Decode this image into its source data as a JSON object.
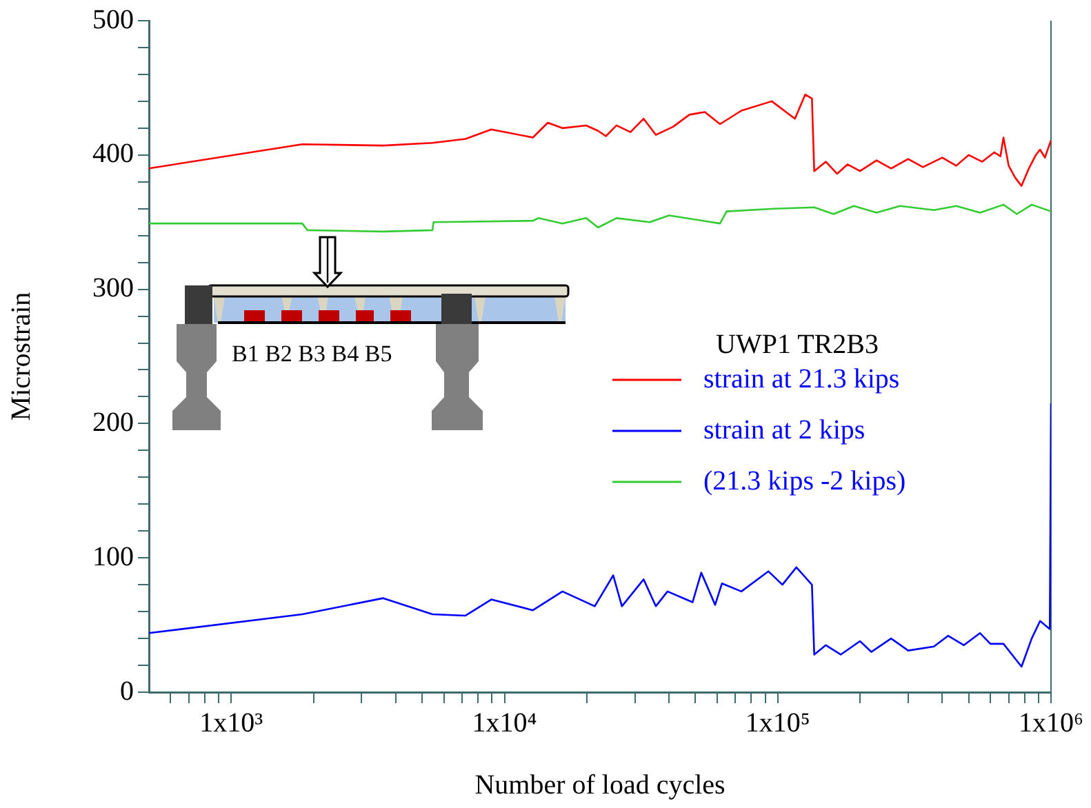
{
  "chart_data": {
    "type": "line",
    "xlabel": "Number of load cycles",
    "ylabel": "Microstrain",
    "annotations": [
      "UWP1 TR2B3",
      "B1 B2 B3 B4 B5"
    ],
    "log": "x",
    "grid": false,
    "legend": "right",
    "marker": "none",
    "line_style": "solid",
    "xlim": [
      500,
      1000000
    ],
    "xticks": [
      {
        "value": 600,
        "label": null
      },
      {
        "value": 700,
        "label": null
      },
      {
        "value": 800,
        "label": null
      },
      {
        "value": 900,
        "label": null
      },
      {
        "value": 1000,
        "label": "1x10³"
      },
      {
        "value": 2000,
        "label": null
      },
      {
        "value": 3000,
        "label": null
      },
      {
        "value": 4000,
        "label": null
      },
      {
        "value": 5000,
        "label": null
      },
      {
        "value": 6000,
        "label": null
      },
      {
        "value": 7000,
        "label": null
      },
      {
        "value": 8000,
        "label": null
      },
      {
        "value": 9000,
        "label": null
      },
      {
        "value": 10000,
        "label": "1x10⁴"
      },
      {
        "value": 20000,
        "label": null
      },
      {
        "value": 30000,
        "label": null
      },
      {
        "value": 40000,
        "label": null
      },
      {
        "value": 50000,
        "label": null
      },
      {
        "value": 60000,
        "label": null
      },
      {
        "value": 70000,
        "label": null
      },
      {
        "value": 80000,
        "label": null
      },
      {
        "value": 90000,
        "label": null
      },
      {
        "value": 100000,
        "label": "1x10⁵"
      },
      {
        "value": 200000,
        "label": null
      },
      {
        "value": 300000,
        "label": null
      },
      {
        "value": 400000,
        "label": null
      },
      {
        "value": 500000,
        "label": null
      },
      {
        "value": 600000,
        "label": null
      },
      {
        "value": 700000,
        "label": null
      },
      {
        "value": 800000,
        "label": null
      },
      {
        "value": 900000,
        "label": null
      },
      {
        "value": 1000000,
        "label": "1x10⁶"
      }
    ],
    "ylim": [
      0,
      500
    ],
    "yticks": [
      0,
      {
        "value": 20,
        "label": null
      },
      {
        "value": 40,
        "label": null
      },
      {
        "value": 60,
        "label": null
      },
      {
        "value": 80,
        "label": null
      },
      100,
      {
        "value": 120,
        "label": null
      },
      {
        "value": 140,
        "label": null
      },
      {
        "value": 160,
        "label": null
      },
      {
        "value": 180,
        "label": null
      },
      200,
      {
        "value": 220,
        "label": null
      },
      {
        "value": 240,
        "label": null
      },
      {
        "value": 260,
        "label": null
      },
      {
        "value": 280,
        "label": null
      },
      300,
      {
        "value": 320,
        "label": null
      },
      {
        "value": 340,
        "label": null
      },
      {
        "value": 360,
        "label": null
      },
      {
        "value": 380,
        "label": null
      },
      400,
      {
        "value": 420,
        "label": null
      },
      {
        "value": 440,
        "label": null
      },
      {
        "value": 460,
        "label": null
      },
      {
        "value": 480,
        "label": null
      },
      500
    ],
    "series": [
      {
        "name": "strain at 21.3 kips",
        "color": "#ff0000",
        "x": [
          500,
          1820,
          3600,
          5450,
          7200,
          8950,
          12700,
          14400,
          16300,
          19900,
          22000,
          23500,
          25700,
          28900,
          32300,
          35800,
          41400,
          47500,
          54100,
          61500,
          73600,
          95100,
          115600,
          126000,
          133400,
          136000,
          150000,
          165000,
          180000,
          200000,
          230000,
          260000,
          300000,
          340000,
          400000,
          450000,
          500000,
          560000,
          620000,
          653000,
          670000,
          700000,
          740000,
          780000,
          830000,
          880000,
          912000,
          950000,
          1000000
        ],
        "values": [
          390,
          408,
          407,
          409,
          412,
          419,
          413,
          424,
          420,
          422,
          418,
          414,
          422,
          417,
          427,
          415,
          421,
          430,
          432,
          423,
          433,
          440,
          427,
          445,
          442,
          388,
          395,
          386,
          393,
          388,
          396,
          390,
          397,
          391,
          398,
          392,
          400,
          395,
          402,
          399,
          413,
          392,
          383,
          377,
          390,
          400,
          404,
          398,
          411
        ]
      },
      {
        "name": "strain at 2 kips",
        "color": "#0000ff",
        "x": [
          500,
          1820,
          3600,
          5450,
          7200,
          8950,
          12700,
          16300,
          21400,
          25000,
          26900,
          32300,
          35800,
          39500,
          48800,
          52500,
          59000,
          62500,
          73600,
          92400,
          104000,
          117000,
          133400,
          136000,
          150000,
          170000,
          200000,
          220000,
          260000,
          300000,
          373000,
          420000,
          480000,
          550000,
          600000,
          670000,
          720000,
          780000,
          850000,
          912000,
          990000,
          1000000
        ],
        "values": [
          44,
          58,
          70,
          58,
          57,
          69,
          61,
          75,
          64,
          87,
          64,
          84,
          64,
          75,
          67,
          89,
          65,
          81,
          75,
          90,
          80,
          93,
          80,
          28,
          35,
          28,
          38,
          30,
          40,
          31,
          34,
          42,
          35,
          44,
          36,
          36,
          28,
          19,
          40,
          53,
          47,
          215
        ]
      },
      {
        "name": "(21.3 kips -2 kips)",
        "color": "#33cc33",
        "x": [
          500,
          1820,
          1900,
          3600,
          5450,
          5500,
          12700,
          13300,
          16300,
          19900,
          22000,
          25700,
          34000,
          40000,
          61500,
          65000,
          97000,
          136000,
          160000,
          190000,
          230000,
          280000,
          373000,
          450000,
          550000,
          670000,
          750000,
          850000,
          1000000
        ],
        "values": [
          349,
          349,
          344,
          343,
          344,
          350,
          351,
          353,
          349,
          353,
          346,
          353,
          350,
          355,
          349,
          358,
          360,
          361,
          356,
          362,
          357,
          362,
          359,
          362,
          357,
          363,
          356,
          363,
          358
        ]
      }
    ]
  }
}
